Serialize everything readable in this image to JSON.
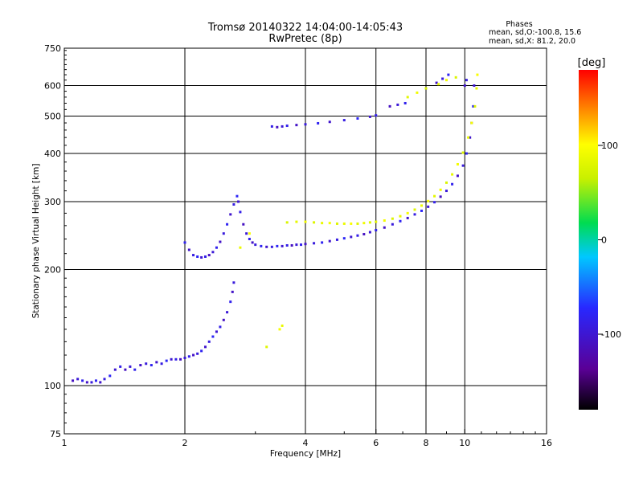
{
  "header": {
    "title_line1": "Tromsø 20140322 14:04:00-14:05:43",
    "title_line2": "RwPretec (8p)",
    "stats_heading": "Phases",
    "stats_line1": "mean, sd,O:-100.8, 15.6",
    "stats_line2": "mean, sd,X:  81.2, 20.0"
  },
  "chart_data": {
    "type": "scatter",
    "title": "Tromsø 20140322 14:04:00-14:05:43",
    "subtitle": "RwPretec (8p)",
    "xlabel": "Frequency [MHz]",
    "ylabel": "Stationary phase Virtual Height [km]",
    "x_scale": "log",
    "y_scale": "log",
    "xlim": [
      1,
      16
    ],
    "ylim": [
      75,
      750
    ],
    "x_ticks": [
      1,
      2,
      4,
      6,
      8,
      10,
      16
    ],
    "y_ticks": [
      75,
      100,
      200,
      300,
      400,
      500,
      600,
      750
    ],
    "x_grid": [
      2,
      4,
      6,
      8,
      10
    ],
    "y_grid": [
      100,
      200,
      300,
      400,
      500,
      600
    ],
    "colorbar": {
      "label": "[deg]",
      "range": [
        -180,
        180
      ],
      "ticks": [
        100,
        0,
        -100
      ],
      "colormap": [
        "#000000",
        "#5a0096",
        "#2828ff",
        "#00c8ff",
        "#00dc50",
        "#c8f000",
        "#ffff00",
        "#ff8c00",
        "#ff0000"
      ]
    },
    "series": [
      {
        "name": "O",
        "color_phase": -100,
        "points": [
          [
            1.05,
            103
          ],
          [
            1.08,
            104
          ],
          [
            1.11,
            103
          ],
          [
            1.14,
            102
          ],
          [
            1.17,
            102
          ],
          [
            1.2,
            103
          ],
          [
            1.23,
            102
          ],
          [
            1.26,
            104
          ],
          [
            1.3,
            106
          ],
          [
            1.34,
            110
          ],
          [
            1.38,
            112
          ],
          [
            1.42,
            110
          ],
          [
            1.46,
            112
          ],
          [
            1.5,
            110
          ],
          [
            1.55,
            113
          ],
          [
            1.6,
            114
          ],
          [
            1.65,
            113
          ],
          [
            1.7,
            115
          ],
          [
            1.75,
            114
          ],
          [
            1.8,
            116
          ],
          [
            1.85,
            117
          ],
          [
            1.9,
            117
          ],
          [
            1.95,
            117
          ],
          [
            2.0,
            118
          ],
          [
            2.05,
            119
          ],
          [
            2.1,
            120
          ],
          [
            2.15,
            121
          ],
          [
            2.2,
            123
          ],
          [
            2.25,
            126
          ],
          [
            2.3,
            130
          ],
          [
            2.35,
            134
          ],
          [
            2.4,
            138
          ],
          [
            2.45,
            142
          ],
          [
            2.5,
            148
          ],
          [
            2.55,
            155
          ],
          [
            2.6,
            165
          ],
          [
            2.63,
            175
          ],
          [
            2.65,
            185
          ],
          [
            2.0,
            235
          ],
          [
            2.05,
            225
          ],
          [
            2.1,
            218
          ],
          [
            2.15,
            216
          ],
          [
            2.2,
            215
          ],
          [
            2.25,
            216
          ],
          [
            2.3,
            218
          ],
          [
            2.35,
            222
          ],
          [
            2.4,
            228
          ],
          [
            2.45,
            236
          ],
          [
            2.5,
            248
          ],
          [
            2.55,
            262
          ],
          [
            2.6,
            278
          ],
          [
            2.65,
            295
          ],
          [
            2.7,
            310
          ],
          [
            2.72,
            300
          ],
          [
            2.75,
            282
          ],
          [
            2.8,
            262
          ],
          [
            2.85,
            248
          ],
          [
            2.9,
            240
          ],
          [
            2.95,
            235
          ],
          [
            3.0,
            232
          ],
          [
            3.1,
            230
          ],
          [
            3.2,
            229
          ],
          [
            3.3,
            229
          ],
          [
            3.4,
            230
          ],
          [
            3.5,
            230
          ],
          [
            3.6,
            231
          ],
          [
            3.7,
            231
          ],
          [
            3.8,
            232
          ],
          [
            3.9,
            232
          ],
          [
            4.0,
            233
          ],
          [
            4.2,
            234
          ],
          [
            4.4,
            235
          ],
          [
            4.6,
            237
          ],
          [
            4.8,
            239
          ],
          [
            5.0,
            241
          ],
          [
            5.2,
            243
          ],
          [
            5.4,
            245
          ],
          [
            5.6,
            247
          ],
          [
            5.8,
            250
          ],
          [
            6.0,
            253
          ],
          [
            6.3,
            257
          ],
          [
            6.6,
            262
          ],
          [
            6.9,
            267
          ],
          [
            7.2,
            272
          ],
          [
            7.5,
            278
          ],
          [
            7.8,
            284
          ],
          [
            8.1,
            291
          ],
          [
            8.4,
            299
          ],
          [
            8.7,
            309
          ],
          [
            9.0,
            320
          ],
          [
            9.3,
            333
          ],
          [
            9.6,
            350
          ],
          [
            9.9,
            372
          ],
          [
            10.1,
            400
          ],
          [
            10.3,
            440
          ],
          [
            10.4,
            480
          ],
          [
            10.5,
            530
          ],
          [
            10.55,
            600
          ],
          [
            3.3,
            470
          ],
          [
            3.4,
            468
          ],
          [
            3.5,
            470
          ],
          [
            3.6,
            472
          ],
          [
            3.8,
            474
          ],
          [
            4.0,
            476
          ],
          [
            4.3,
            479
          ],
          [
            4.6,
            483
          ],
          [
            5.0,
            488
          ],
          [
            5.4,
            493
          ],
          [
            5.8,
            498
          ],
          [
            6.0,
            502
          ],
          [
            6.5,
            530
          ],
          [
            6.8,
            535
          ],
          [
            7.1,
            540
          ],
          [
            8.5,
            610
          ],
          [
            8.8,
            625
          ],
          [
            9.1,
            640
          ],
          [
            10.0,
            600
          ],
          [
            10.1,
            620
          ]
        ]
      },
      {
        "name": "X",
        "color_phase": 80,
        "points": [
          [
            3.6,
            265
          ],
          [
            3.8,
            266
          ],
          [
            4.0,
            266
          ],
          [
            4.2,
            265
          ],
          [
            4.4,
            264
          ],
          [
            4.6,
            264
          ],
          [
            4.8,
            263
          ],
          [
            5.0,
            263
          ],
          [
            5.2,
            263
          ],
          [
            5.4,
            263
          ],
          [
            5.6,
            264
          ],
          [
            5.8,
            265
          ],
          [
            6.0,
            266
          ],
          [
            6.3,
            268
          ],
          [
            6.6,
            271
          ],
          [
            6.9,
            275
          ],
          [
            7.2,
            280
          ],
          [
            7.5,
            286
          ],
          [
            7.8,
            293
          ],
          [
            8.1,
            301
          ],
          [
            8.4,
            310
          ],
          [
            8.7,
            322
          ],
          [
            9.0,
            336
          ],
          [
            9.3,
            353
          ],
          [
            9.6,
            375
          ],
          [
            9.9,
            402
          ],
          [
            10.2,
            440
          ],
          [
            10.4,
            480
          ],
          [
            10.6,
            530
          ],
          [
            10.7,
            590
          ],
          [
            10.75,
            640
          ],
          [
            7.2,
            560
          ],
          [
            7.6,
            575
          ],
          [
            8.0,
            590
          ],
          [
            8.6,
            605
          ],
          [
            9.0,
            620
          ],
          [
            9.5,
            630
          ],
          [
            3.5,
            143
          ],
          [
            3.45,
            140
          ],
          [
            3.2,
            126
          ],
          [
            2.75,
            228
          ],
          [
            2.9,
            248
          ]
        ]
      }
    ]
  }
}
